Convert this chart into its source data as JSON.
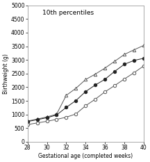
{
  "title": "10th percentiles",
  "xlabel": "Gestational age (completed weeks)",
  "ylabel": "Birthweight (g)",
  "xlim": [
    28,
    40
  ],
  "ylim": [
    0,
    5000
  ],
  "yticks": [
    0,
    500,
    1000,
    1500,
    2000,
    2500,
    3000,
    3500,
    4000,
    4500,
    5000
  ],
  "xticks": [
    28,
    30,
    32,
    34,
    36,
    38,
    40
  ],
  "series": [
    {
      "name": "triangle_open",
      "marker": "^",
      "fillstyle": "none",
      "color": "#555555",
      "x": [
        28,
        29,
        30,
        31,
        32,
        33,
        34,
        35,
        36,
        37,
        38,
        39,
        40
      ],
      "y": [
        760,
        830,
        910,
        1010,
        1700,
        1960,
        2280,
        2480,
        2700,
        2950,
        3200,
        3370,
        3530
      ]
    },
    {
      "name": "circle_filled",
      "marker": "o",
      "fillstyle": "full",
      "color": "#222222",
      "x": [
        28,
        29,
        30,
        31,
        32,
        33,
        34,
        35,
        36,
        37,
        38,
        39,
        40
      ],
      "y": [
        740,
        810,
        880,
        980,
        1260,
        1510,
        1840,
        2080,
        2290,
        2580,
        2840,
        2980,
        3060
      ]
    },
    {
      "name": "circle_open",
      "marker": "o",
      "fillstyle": "none",
      "color": "#555555",
      "x": [
        28,
        29,
        30,
        31,
        32,
        33,
        34,
        35,
        36,
        37,
        38,
        39,
        40
      ],
      "y": [
        630,
        690,
        750,
        820,
        900,
        1020,
        1320,
        1560,
        1830,
        2060,
        2300,
        2530,
        2780
      ]
    }
  ],
  "background_color": "#ffffff",
  "title_fontsize": 6.5,
  "axis_label_fontsize": 5.5,
  "tick_fontsize": 5.5,
  "linewidth": 0.7,
  "markersize": 3.2,
  "markeredgewidth": 0.7
}
